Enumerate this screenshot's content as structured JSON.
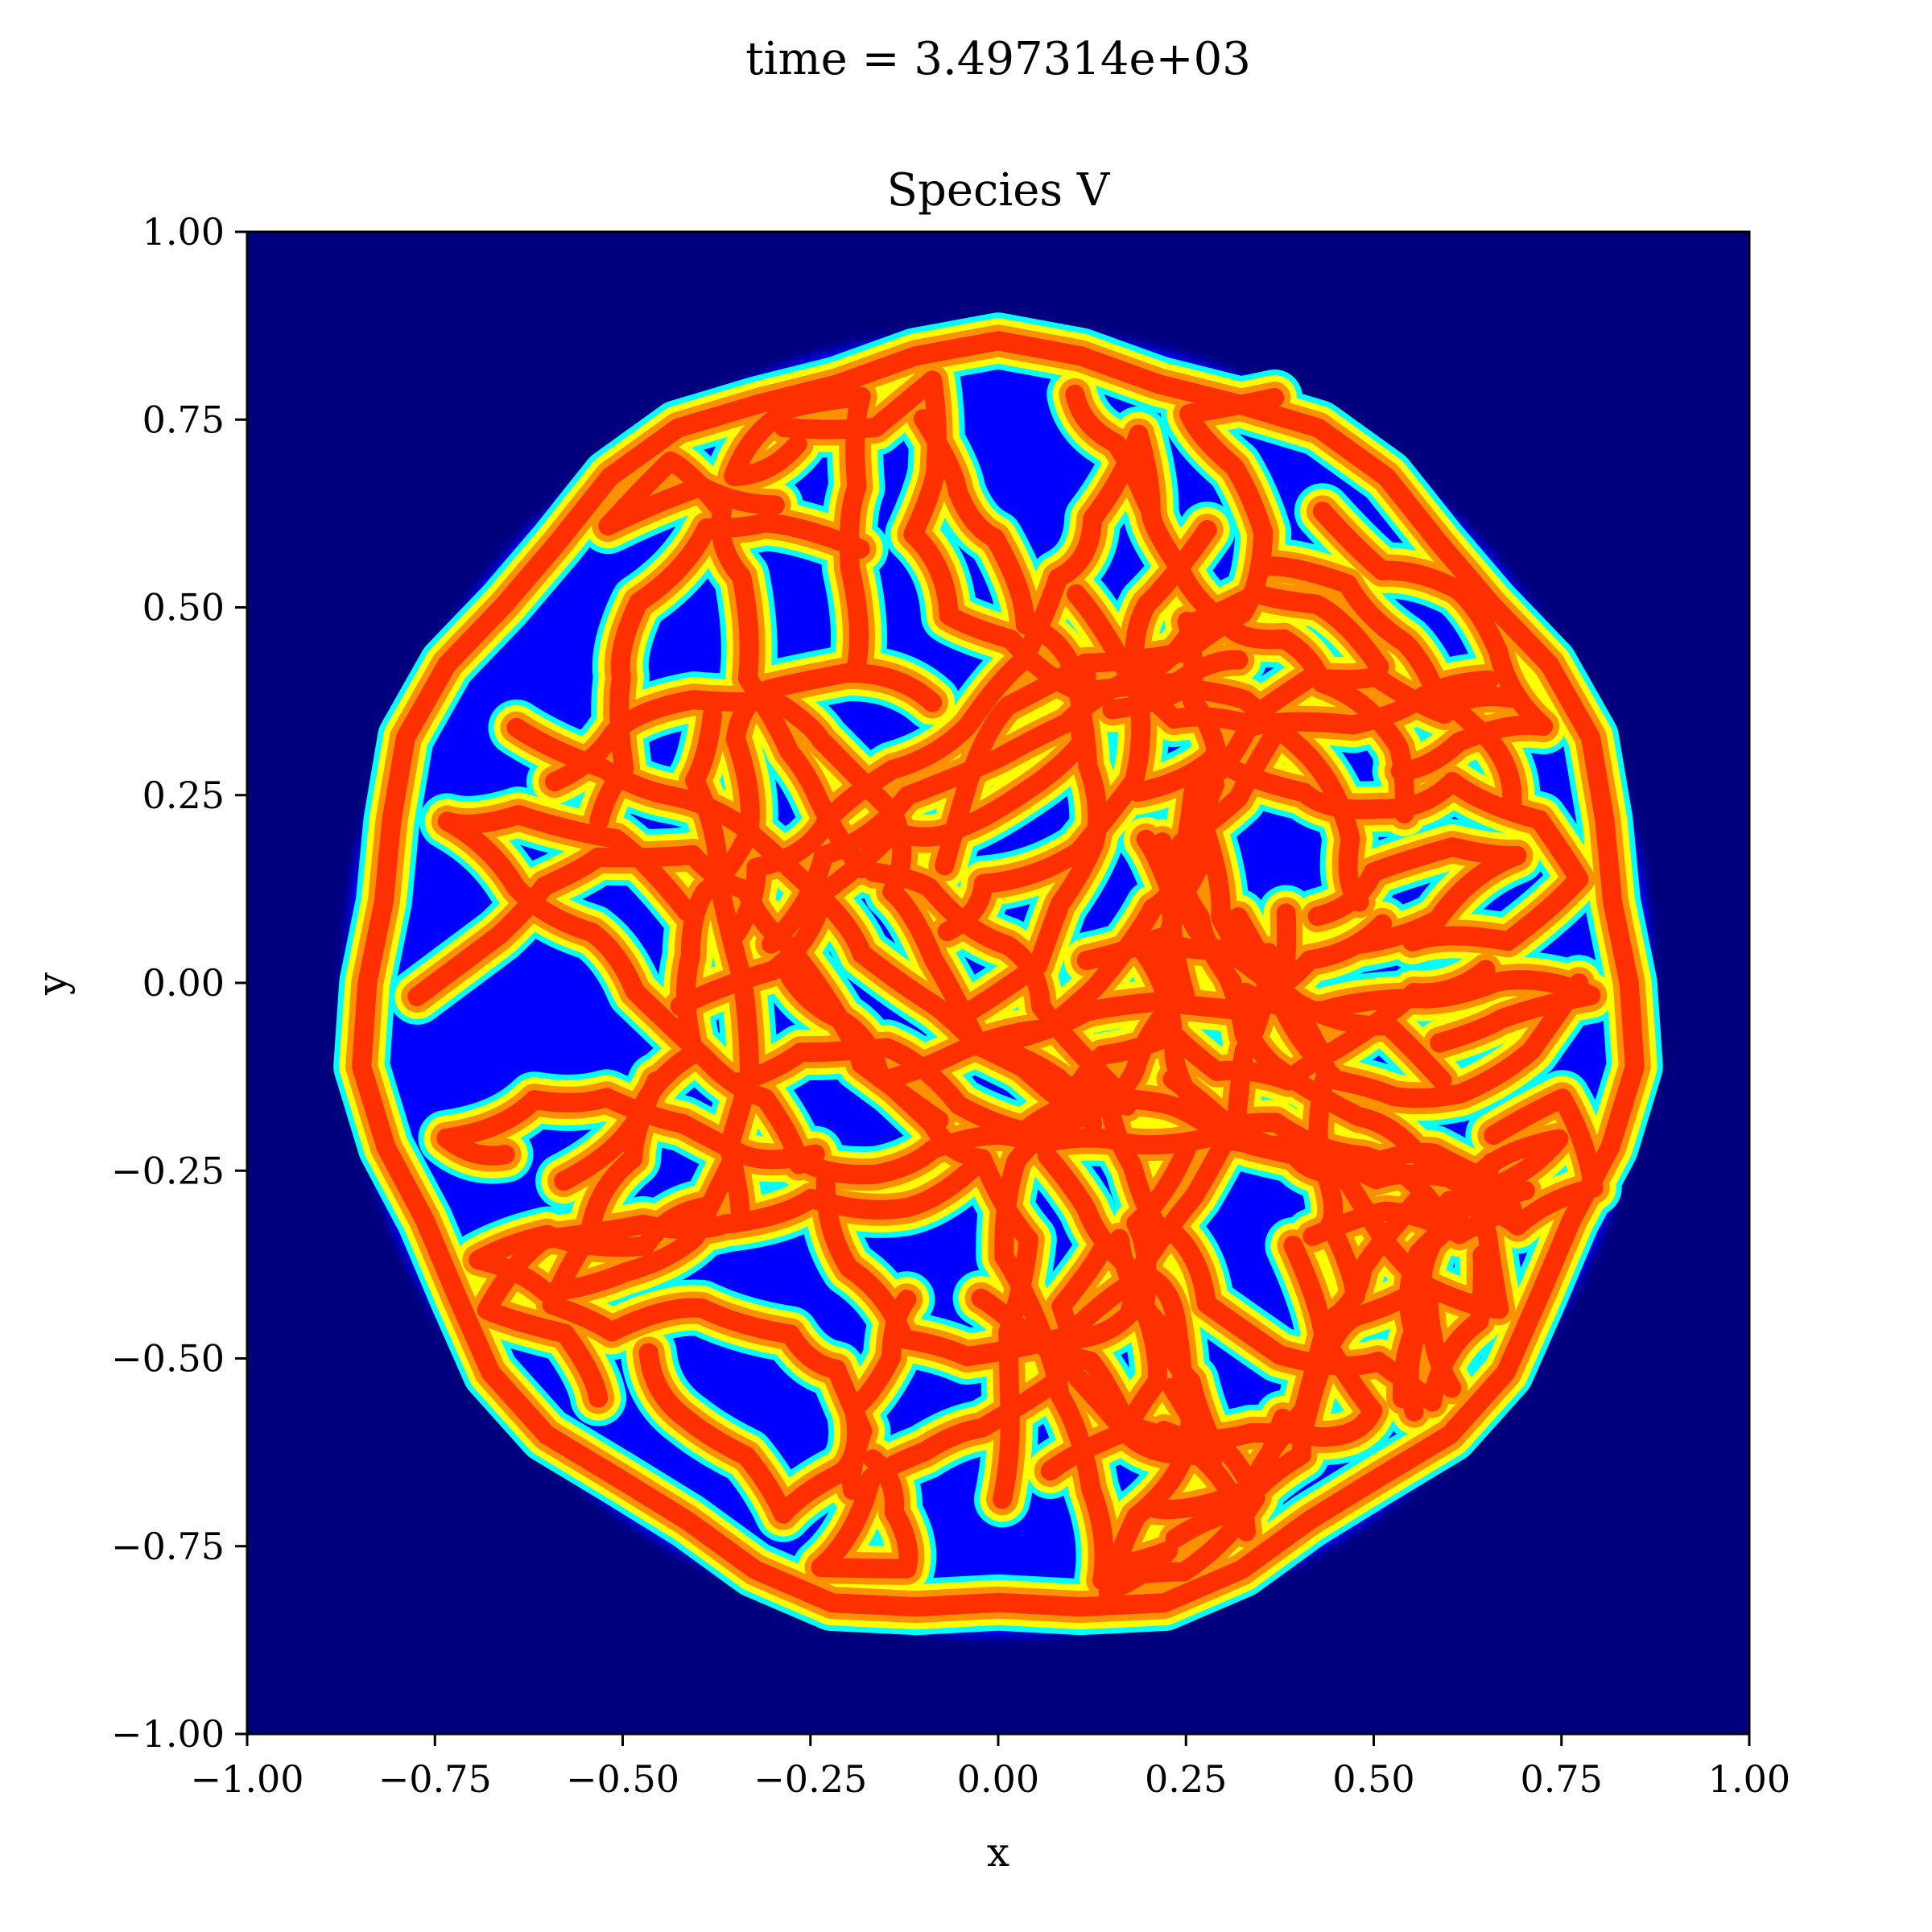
{
  "figure": {
    "suptitle": "time = 3.497314e+03"
  },
  "chart_data": {
    "type": "heatmap",
    "title": "Species V",
    "xlabel": "x",
    "ylabel": "y",
    "xlim": [
      -1.0,
      1.0
    ],
    "ylim": [
      -1.0,
      1.0
    ],
    "xticks": [
      -1.0,
      -0.75,
      -0.5,
      -0.25,
      0.0,
      0.25,
      0.5,
      0.75,
      1.0
    ],
    "yticks": [
      -1.0,
      -0.75,
      -0.5,
      -0.25,
      0.0,
      0.25,
      0.5,
      0.75,
      1.0
    ],
    "xtick_labels": [
      "−1.00",
      "−0.75",
      "−0.50",
      "−0.25",
      "0.00",
      "0.25",
      "0.50",
      "0.75",
      "1.00"
    ],
    "ytick_labels": [
      "−1.00",
      "−0.75",
      "−0.50",
      "−0.25",
      "0.00",
      "0.25",
      "0.50",
      "0.75",
      "1.00"
    ],
    "colormap": "jet",
    "background_color": "#00007f",
    "grid": false,
    "pattern": {
      "description_visible": "labyrinthine stripe pattern within a disk",
      "domain_center": [
        0.0,
        0.0
      ],
      "domain_radius": 0.87,
      "stripe_color_core": "#ff3000",
      "stripe_color_edge": "#ffff00",
      "gap_color": "#0000ff"
    }
  }
}
